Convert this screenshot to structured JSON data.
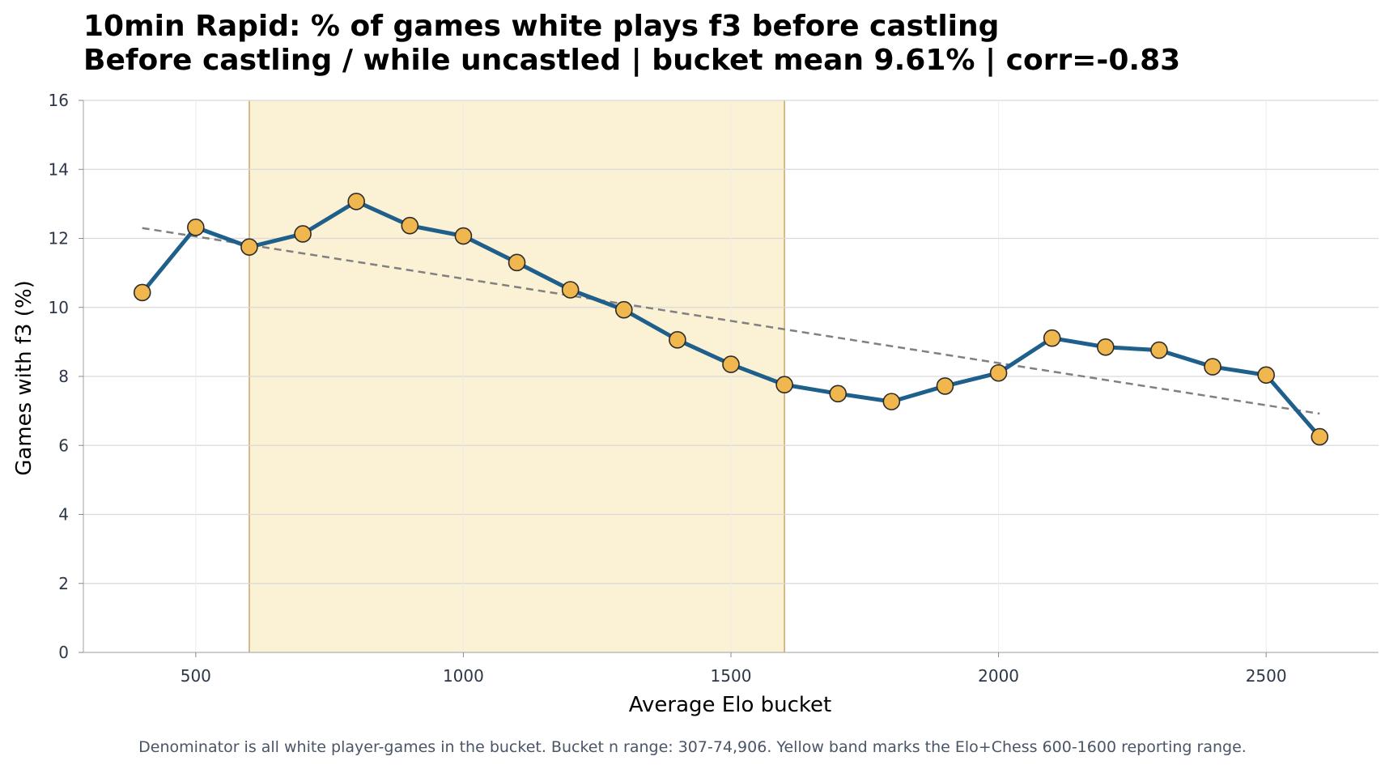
{
  "title_line1": "10min Rapid: % of games white plays f3 before castling",
  "title_line2": "Before castling / while uncastled | bucket mean 9.61% | corr=-0.83",
  "footnote": "Denominator is all white player-games in the bucket. Bucket n range: 307-74,906. Yellow band marks the Elo+Chess 600-1600 reporting range.",
  "colors": {
    "line": "#1f5f8b",
    "marker_fill": "#f0b74f",
    "marker_edge": "#2b2b2b",
    "trend": "#808080",
    "band_fill": "#fbf1d4",
    "band_edge": "#c8a86a",
    "grid": "#d9d9d9",
    "tick_text": "#2d3748"
  },
  "chart_data": {
    "type": "line",
    "xlabel": "Average Elo bucket",
    "ylabel": "Games with f3 (%)",
    "xlim": [
      290,
      2710
    ],
    "ylim": [
      0,
      16
    ],
    "xticks": [
      500,
      1000,
      1500,
      2000,
      2500
    ],
    "yticks": [
      0,
      2,
      4,
      6,
      8,
      10,
      12,
      14,
      16
    ],
    "grid": true,
    "series": [
      {
        "x": [
          400,
          500,
          600,
          700,
          800,
          900,
          1000,
          1100,
          1200,
          1300,
          1400,
          1500,
          1600,
          1700,
          1800,
          1900,
          2000,
          2100,
          2200,
          2300,
          2400,
          2500,
          2600
        ],
        "y": [
          10.43,
          12.32,
          11.75,
          12.13,
          13.07,
          12.37,
          12.07,
          11.3,
          10.51,
          9.93,
          9.06,
          8.35,
          7.76,
          7.5,
          7.27,
          7.72,
          8.1,
          9.11,
          8.85,
          8.76,
          8.28,
          8.04,
          6.25
        ]
      }
    ],
    "trendline": {
      "x": [
        400,
        2600
      ],
      "y": [
        12.3,
        6.92
      ]
    },
    "band": {
      "x": [
        600,
        1600
      ]
    }
  }
}
